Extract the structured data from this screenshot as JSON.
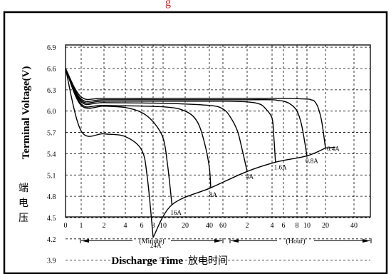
{
  "chart_data": {
    "type": "line",
    "title": "",
    "top_caption": "g",
    "ylabel": "Terminal Voltage(V)",
    "ylabel_cn": "端电压",
    "xlabel": "Discharge Time",
    "xlabel_cn": "放电时间",
    "ylim": [
      3.6,
      7.1
    ],
    "yticks": [
      "6.9",
      "6.6",
      "6.3",
      "6.0",
      "5.7",
      "5.4",
      "5.1",
      "4.8",
      "4.5",
      "4.2",
      "3.9"
    ],
    "xticks": [
      "0",
      "1",
      "2",
      "4",
      "6",
      "8",
      "10",
      "20",
      "40",
      "60",
      "2",
      "4",
      "6",
      "8",
      "10",
      "20",
      "40"
    ],
    "x_unit_minute": "(Minute)",
    "x_unit_hour": "(Hour)",
    "grid": true,
    "series": [
      {
        "name": "0.4A",
        "x": [
          "0",
          "1 min",
          "2 min",
          "10 min",
          "60 min",
          "2 h",
          "6 h",
          "10 h",
          "12 h",
          "14 h",
          "16 h",
          "18 h",
          "20 h"
        ],
        "y": [
          6.6,
          6.2,
          6.18,
          6.18,
          6.18,
          6.18,
          6.18,
          6.17,
          6.16,
          6.14,
          6.05,
          5.85,
          5.48
        ]
      },
      {
        "name": "0.8A",
        "x": [
          "0",
          "1 min",
          "2 min",
          "10 min",
          "60 min",
          "2 h",
          "4 h",
          "5 h",
          "6 h",
          "7 h",
          "8 h",
          "9 h",
          "10 h"
        ],
        "y": [
          6.6,
          6.17,
          6.16,
          6.16,
          6.16,
          6.16,
          6.16,
          6.15,
          6.14,
          6.1,
          6.0,
          5.78,
          5.37
        ]
      },
      {
        "name": "1.6A",
        "x": [
          "0",
          "1 min",
          "2 min",
          "10 min",
          "60 min",
          "2 h",
          "3 h",
          "3.5 h",
          "4 h",
          "4.3 h",
          "4.6 h"
        ],
        "y": [
          6.6,
          6.15,
          6.14,
          6.14,
          6.14,
          6.13,
          6.1,
          6.03,
          5.9,
          5.65,
          5.28
        ]
      },
      {
        "name": "4A",
        "x": [
          "0",
          "1 min",
          "2 min",
          "10 min",
          "40 min",
          "60 min",
          "1.3 h",
          "1.6 h",
          "1.8 h",
          "2 h"
        ],
        "y": [
          6.6,
          6.13,
          6.12,
          6.11,
          6.08,
          6.03,
          5.92,
          5.72,
          5.45,
          5.15
        ]
      },
      {
        "name": "8A",
        "x": [
          "0",
          "1 min",
          "2 min",
          "10 min",
          "20 min",
          "30 min",
          "36 min",
          "40 min",
          "42 min"
        ],
        "y": [
          6.6,
          6.1,
          6.08,
          6.06,
          6.0,
          5.85,
          5.55,
          5.2,
          4.92
        ]
      },
      {
        "name": "16A",
        "x": [
          "0",
          "1 min",
          "2 min",
          "4 min",
          "6 min",
          "8 min",
          "10 min",
          "12 min",
          "14 min"
        ],
        "y": [
          6.6,
          6.08,
          6.07,
          6.05,
          5.98,
          5.85,
          5.62,
          5.25,
          4.68
        ]
      },
      {
        "name": "24A",
        "x": [
          "0",
          "1 min",
          "2 min",
          "4 min",
          "6 min",
          "7 min",
          "8 min"
        ],
        "y": [
          6.6,
          5.72,
          5.68,
          5.64,
          5.45,
          5.05,
          4.22
        ]
      }
    ]
  }
}
